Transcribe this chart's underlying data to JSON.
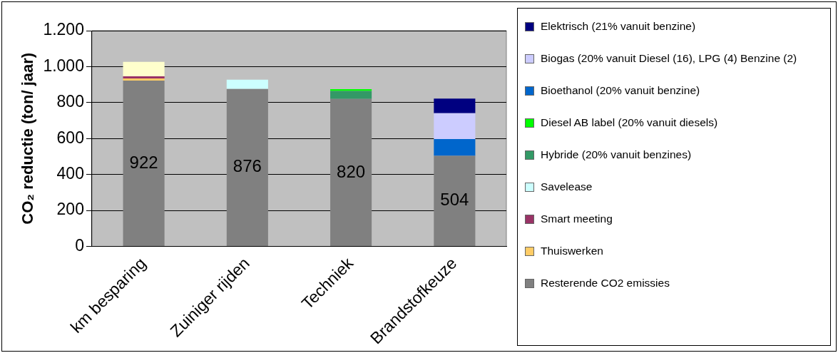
{
  "chart_data": {
    "type": "bar",
    "stacked": true,
    "ylabel": "CO₂ reductie (ton/ jaar)",
    "categories": [
      "km besparing",
      "Zuiniger rijden",
      "Techniek",
      "Brandstofkeuze"
    ],
    "ylim": [
      0,
      1200
    ],
    "yticks": [
      0,
      {
        "value": 200,
        "label": "200"
      },
      {
        "value": 400,
        "label": "400"
      },
      {
        "value": 600,
        "label": "600"
      },
      {
        "value": 800,
        "label": "800"
      },
      {
        "value": 1000,
        "label": "1.000"
      },
      {
        "value": 1200,
        "label": "1.200"
      }
    ],
    "grid": "y",
    "legend": "right",
    "series": [
      {
        "name": "Resterende CO2 emissies",
        "color": "#808080",
        "values": [
          922,
          876,
          820,
          504
        ],
        "value_labels": [
          "922",
          "876",
          "820",
          "504"
        ]
      },
      {
        "name": "Thuiswerken",
        "color": "#ffcc66",
        "values": [
          12,
          0,
          0,
          0
        ]
      },
      {
        "name": "Smart meeting",
        "color": "#993366",
        "values": [
          12,
          0,
          0,
          0
        ]
      },
      {
        "color": "#ffffcc",
        "values": [
          80,
          0,
          0,
          0
        ]
      },
      {
        "name": "Savelease",
        "color": "#ccffff",
        "values": [
          0,
          51,
          0,
          0
        ]
      },
      {
        "name": "Hybride (20% vanuit benzines)",
        "color": "#339966",
        "values": [
          0,
          0,
          45,
          0
        ]
      },
      {
        "name": "Diesel AB label (20% vanuit diesels)",
        "color": "#00ff00",
        "values": [
          0,
          0,
          10,
          0
        ]
      },
      {
        "name": "Bioethanol (20% vanuit benzine)",
        "color": "#0066cc",
        "values": [
          0,
          0,
          0,
          93
        ]
      },
      {
        "name": "Biogas (20% vanuit Diesel (16), LPG (4) Benzine (2)",
        "color": "#ccccff",
        "values": [
          0,
          0,
          0,
          144
        ]
      },
      {
        "name": "Elektrisch (21% vanuit benzine)",
        "color": "#000080",
        "values": [
          0,
          0,
          0,
          81
        ]
      }
    ]
  }
}
